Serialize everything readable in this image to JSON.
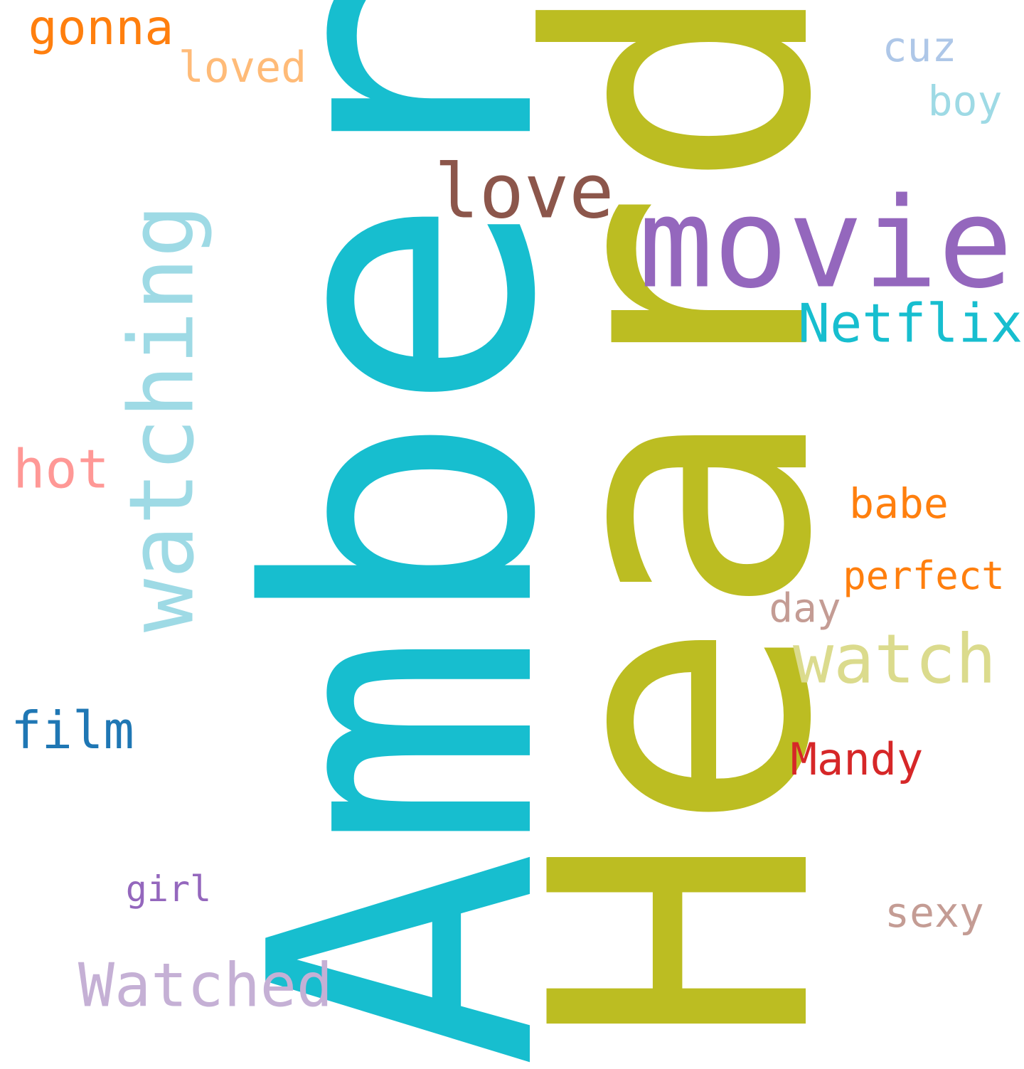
{
  "words": {
    "amber": {
      "text": "Amber",
      "color": "#17becf"
    },
    "heard": {
      "text": "Heard",
      "color": "#bcbd22"
    },
    "movie": {
      "text": "movie",
      "color": "#9467bd"
    },
    "watching": {
      "text": "watching",
      "color": "#9edae5"
    },
    "love": {
      "text": "love",
      "color": "#8c564b"
    },
    "netflix": {
      "text": "Netflix",
      "color": "#17becf"
    },
    "watch": {
      "text": "watch",
      "color": "#dbdb8d"
    },
    "watched": {
      "text": "Watched",
      "color": "#c5b0d5"
    },
    "gonna": {
      "text": "gonna",
      "color": "#ff7f0e"
    },
    "loved": {
      "text": "loved",
      "color": "#ffbb78"
    },
    "cuz": {
      "text": "cuz",
      "color": "#aec7e8"
    },
    "boy": {
      "text": "boy",
      "color": "#9edae5"
    },
    "hot": {
      "text": "hot",
      "color": "#ff9896"
    },
    "babe": {
      "text": "babe",
      "color": "#ff7f0e"
    },
    "perfect": {
      "text": "perfect",
      "color": "#ff7f0e"
    },
    "day": {
      "text": "day",
      "color": "#c49c94"
    },
    "film": {
      "text": "film",
      "color": "#1f77b4"
    },
    "mandy": {
      "text": "Mandy",
      "color": "#d62728"
    },
    "girl": {
      "text": "girl",
      "color": "#9467bd"
    },
    "sexy": {
      "text": "sexy",
      "color": "#c49c94"
    }
  }
}
